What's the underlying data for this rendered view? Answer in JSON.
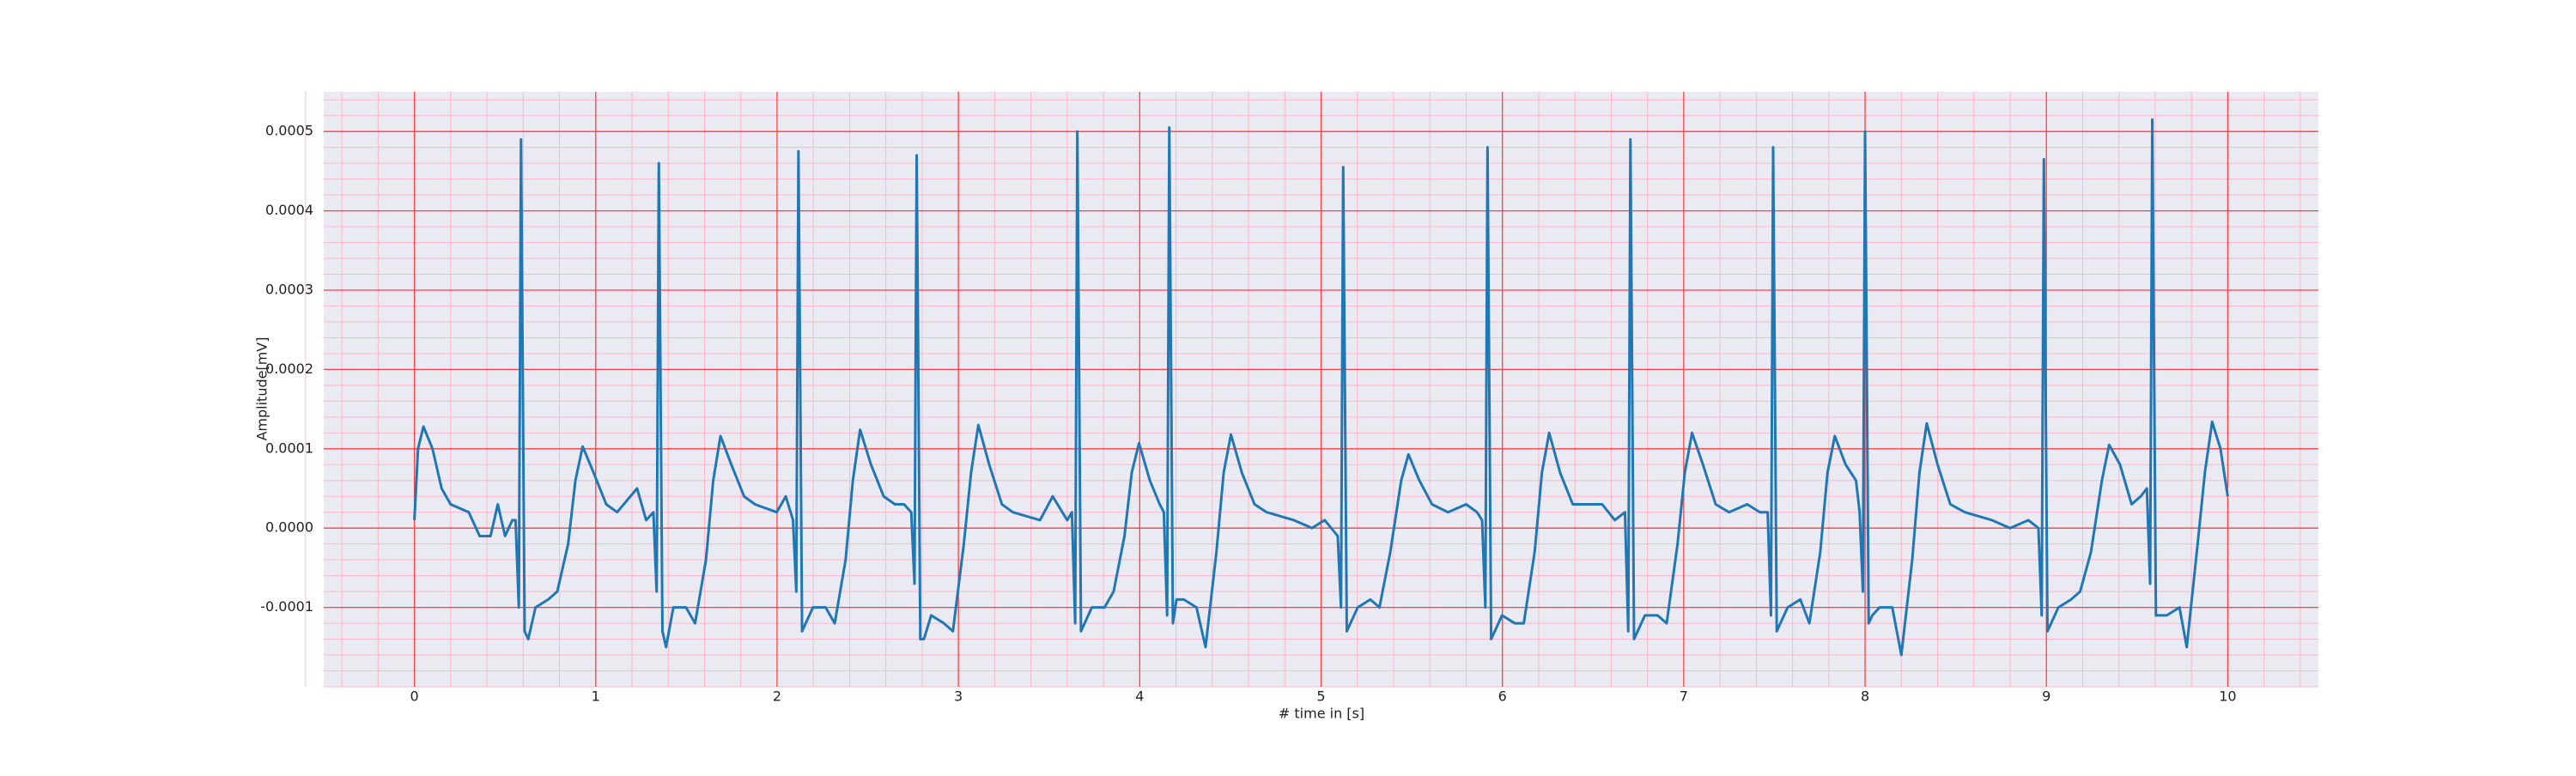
{
  "chart_data": {
    "type": "line",
    "xlabel": "# time in [s]",
    "ylabel": "Amplitude[mV]",
    "color": "#1f77b4",
    "grid": true,
    "minor_grid": true,
    "xlim": [
      -0.5,
      10.5
    ],
    "xticks": [
      0,
      1,
      2,
      3,
      4,
      5,
      6,
      7,
      8,
      9,
      10
    ],
    "ylim": [
      -0.0002,
      0.00055
    ],
    "yticks": [
      -0.0001,
      {
        "value": 0,
        "label": "0.0000"
      },
      0.0001,
      0.0002,
      0.0003,
      0.0004,
      0.0005
    ],
    "x": [
      0,
      0.02,
      0.05,
      0.1,
      0.15,
      0.2,
      0.3,
      0.36,
      0.42,
      0.46,
      0.5,
      0.54,
      0.558,
      0.576,
      0.588,
      0.608,
      0.628,
      0.668,
      0.738,
      0.788,
      0.848,
      0.888,
      0.928,
      0.988,
      1.058,
      1.118,
      1.228,
      1.278,
      1.318,
      1.336,
      1.348,
      1.368,
      1.388,
      1.428,
      1.498,
      1.548,
      1.608,
      1.648,
      1.688,
      1.748,
      1.818,
      1.878,
      1.998,
      2.048,
      2.088,
      2.106,
      2.118,
      2.138,
      2.158,
      2.198,
      2.268,
      2.318,
      2.378,
      2.418,
      2.458,
      2.518,
      2.588,
      2.65,
      2.7,
      2.74,
      2.758,
      2.77,
      2.79,
      2.81,
      2.85,
      2.92,
      2.97,
      3.03,
      3.07,
      3.11,
      3.17,
      3.24,
      3.3,
      3.45,
      3.52,
      3.6,
      3.626,
      3.644,
      3.656,
      3.676,
      3.696,
      3.736,
      3.806,
      3.856,
      3.916,
      3.956,
      3.996,
      4.056,
      4.11,
      4.133,
      4.151,
      4.163,
      4.183,
      4.203,
      4.243,
      4.313,
      4.363,
      4.423,
      4.463,
      4.503,
      4.563,
      4.633,
      4.7,
      4.85,
      4.95,
      5.02,
      5.092,
      5.11,
      5.122,
      5.142,
      5.162,
      5.202,
      5.272,
      5.322,
      5.382,
      5.442,
      5.482,
      5.542,
      5.612,
      5.7,
      5.8,
      5.86,
      5.888,
      5.906,
      5.918,
      5.938,
      5.958,
      5.998,
      6.068,
      6.118,
      6.178,
      6.218,
      6.258,
      6.318,
      6.388,
      6.45,
      6.55,
      6.62,
      6.676,
      6.694,
      6.706,
      6.726,
      6.746,
      6.786,
      6.856,
      6.906,
      6.966,
      7.006,
      7.046,
      7.106,
      7.176,
      7.25,
      7.35,
      7.42,
      7.463,
      7.481,
      7.493,
      7.513,
      7.533,
      7.573,
      7.643,
      7.693,
      7.753,
      7.793,
      7.833,
      7.893,
      7.95,
      7.97,
      7.988,
      8.0,
      8.02,
      8.04,
      8.08,
      8.15,
      8.2,
      8.26,
      8.3,
      8.34,
      8.4,
      8.47,
      8.55,
      8.7,
      8.8,
      8.9,
      8.956,
      8.974,
      8.986,
      9.006,
      9.026,
      9.066,
      9.136,
      9.186,
      9.246,
      9.306,
      9.346,
      9.406,
      9.47,
      9.52,
      9.554,
      9.572,
      9.584,
      9.604,
      9.624,
      9.664,
      9.734,
      9.774,
      9.834,
      9.874,
      9.914,
      9.96,
      10.0
    ],
    "values": [
      1e-05,
      0.0001,
      0.000128,
      0.0001,
      5e-05,
      3e-05,
      2e-05,
      -1e-05,
      -1e-05,
      3e-05,
      -1e-05,
      1e-05,
      1e-05,
      -0.0001,
      0.00049,
      -0.00013,
      -0.00014,
      -0.0001,
      -9e-05,
      -8e-05,
      -2e-05,
      6e-05,
      0.000103,
      7e-05,
      3e-05,
      2e-05,
      5e-05,
      1e-05,
      2e-05,
      -8e-05,
      0.00046,
      -0.00013,
      -0.00015,
      -0.0001,
      -0.0001,
      -0.00012,
      -4e-05,
      6e-05,
      0.000116,
      8e-05,
      4e-05,
      3e-05,
      2e-05,
      4e-05,
      1e-05,
      -8e-05,
      0.000475,
      -0.00013,
      -0.00012,
      -0.0001,
      -0.0001,
      -0.00012,
      -4e-05,
      6e-05,
      0.000124,
      8e-05,
      4e-05,
      3e-05,
      3e-05,
      2e-05,
      -7e-05,
      0.00047,
      -0.00014,
      -0.00014,
      -0.00011,
      -0.00012,
      -0.00013,
      -2e-05,
      7e-05,
      0.00013,
      8e-05,
      3e-05,
      2e-05,
      1e-05,
      4e-05,
      1e-05,
      2e-05,
      -0.00012,
      0.0005,
      -0.00013,
      -0.00012,
      -0.0001,
      -0.0001,
      -8e-05,
      -1e-05,
      7e-05,
      0.000107,
      6e-05,
      3e-05,
      2e-05,
      -0.00011,
      0.000505,
      -0.00012,
      -9e-05,
      -9e-05,
      -0.0001,
      -0.00015,
      -3e-05,
      7e-05,
      0.000118,
      7e-05,
      3e-05,
      2e-05,
      1e-05,
      0,
      1e-05,
      -1e-05,
      -0.0001,
      0.000455,
      -0.00013,
      -0.00012,
      -0.0001,
      -9e-05,
      -0.0001,
      -3e-05,
      6e-05,
      9.3e-05,
      6e-05,
      3e-05,
      2e-05,
      3e-05,
      2e-05,
      1e-05,
      -0.0001,
      0.00048,
      -0.00014,
      -0.00013,
      -0.00011,
      -0.00012,
      -0.00012,
      -3e-05,
      7e-05,
      0.00012,
      7e-05,
      3e-05,
      3e-05,
      3e-05,
      1e-05,
      2e-05,
      -0.00013,
      0.00049,
      -0.00014,
      -0.00013,
      -0.00011,
      -0.00011,
      -0.00012,
      -2e-05,
      7e-05,
      0.00012,
      8e-05,
      3e-05,
      2e-05,
      3e-05,
      2e-05,
      2e-05,
      -0.00011,
      0.00048,
      -0.00013,
      -0.00012,
      -0.0001,
      -9e-05,
      -0.00012,
      -3e-05,
      7e-05,
      0.000116,
      8e-05,
      6e-05,
      2e-05,
      -8e-05,
      0.0005,
      -0.00012,
      -0.00011,
      -0.0001,
      -0.0001,
      -0.00016,
      -4e-05,
      7e-05,
      0.000132,
      8e-05,
      3e-05,
      2e-05,
      1e-05,
      0,
      1e-05,
      0,
      -0.00011,
      0.000465,
      -0.00013,
      -0.00012,
      -0.0001,
      -9e-05,
      -8e-05,
      -3e-05,
      6e-05,
      0.000105,
      8e-05,
      3e-05,
      4e-05,
      5e-05,
      -7e-05,
      0.000515,
      -0.00011,
      -0.00011,
      -0.00011,
      -0.0001,
      -0.00015,
      -2e-05,
      7e-05,
      0.000134,
      0.0001,
      4e-05
    ]
  }
}
